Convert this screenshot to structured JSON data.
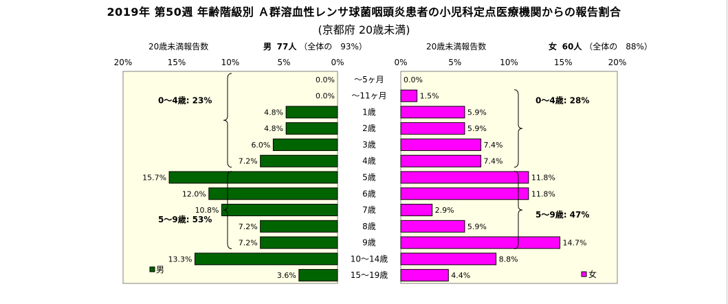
{
  "title": "2019年 第50週 年齢階級別 Ａ群溶血性レンサ球菌咽頭炎患者の小児科定点医療機関からの報告割合",
  "subtitle": "(京都府 20歳未満)",
  "left_header": {
    "caption": "20歳未満報告数",
    "sex": "男",
    "count": "77人",
    "ratio": "（全体の　93%）"
  },
  "right_header": {
    "caption": "20歳未満報告数",
    "sex": "女",
    "count": "60人",
    "ratio": "（全体の　88%）"
  },
  "colors": {
    "male": "#006400",
    "female": "#ff00ff",
    "plot_bg": "#ffffe6"
  },
  "chart_data": [
    {
      "type": "bar",
      "orientation": "horizontal",
      "direction": "right-to-left",
      "categories": [
        "～5ヶ月",
        "～11ヶ月",
        "1歳",
        "2歳",
        "3歳",
        "4歳",
        "5歳",
        "6歳",
        "7歳",
        "8歳",
        "9歳",
        "10～14歳",
        "15～19歳"
      ],
      "series": [
        {
          "name": "男",
          "values": [
            0.0,
            0.0,
            4.8,
            4.8,
            6.0,
            7.2,
            15.7,
            12.0,
            10.8,
            7.2,
            7.2,
            13.3,
            3.6
          ]
        }
      ],
      "value_labels": [
        "0.0%",
        "0.0%",
        "4.8%",
        "4.8%",
        "6.0%",
        "7.2%",
        "15.7%",
        "12.0%",
        "10.8%",
        "7.2%",
        "7.2%",
        "13.3%",
        "3.6%"
      ],
      "xlim": [
        0,
        20
      ],
      "ticks": [
        "0%",
        "5%",
        "10%",
        "15%",
        "20%"
      ],
      "annotations": [
        "0～4歳: 23%",
        "5～9歳: 53%"
      ],
      "legend": "bottom-left"
    },
    {
      "type": "bar",
      "orientation": "horizontal",
      "direction": "left-to-right",
      "categories": [
        "～5ヶ月",
        "～11ヶ月",
        "1歳",
        "2歳",
        "3歳",
        "4歳",
        "5歳",
        "6歳",
        "7歳",
        "8歳",
        "9歳",
        "10～14歳",
        "15～19歳"
      ],
      "series": [
        {
          "name": "女",
          "values": [
            0.0,
            1.5,
            5.9,
            5.9,
            7.4,
            7.4,
            11.8,
            11.8,
            2.9,
            5.9,
            14.7,
            8.8,
            4.4
          ]
        }
      ],
      "value_labels": [
        "0.0%",
        "1.5%",
        "5.9%",
        "5.9%",
        "7.4%",
        "7.4%",
        "11.8%",
        "11.8%",
        "2.9%",
        "5.9%",
        "14.7%",
        "8.8%",
        "4.4%"
      ],
      "xlim": [
        0,
        20
      ],
      "ticks": [
        "0%",
        "5%",
        "10%",
        "15%",
        "20%"
      ],
      "annotations": [
        "0～4歳: 28%",
        "5～9歳: 47%"
      ],
      "legend": "bottom-right"
    }
  ]
}
